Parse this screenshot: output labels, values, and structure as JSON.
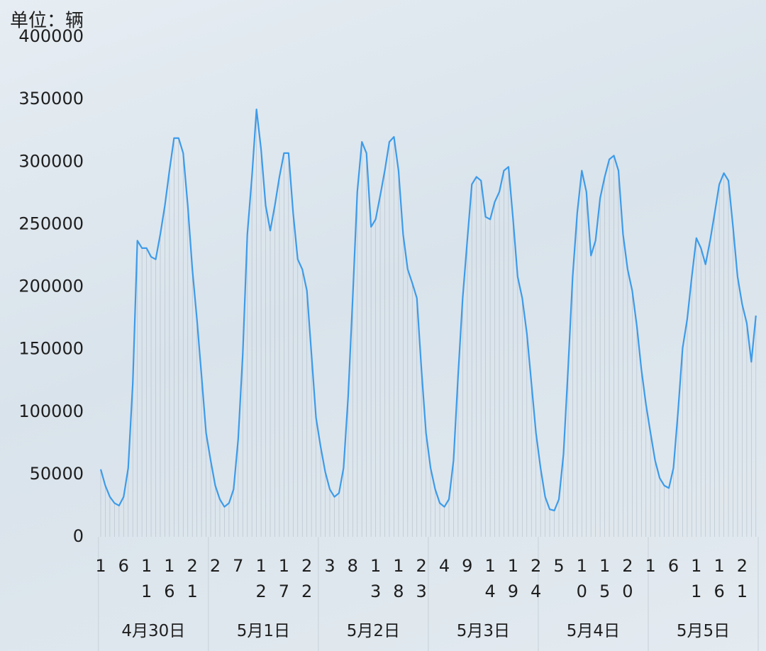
{
  "chart_data": {
    "type": "line",
    "title": "单位：辆",
    "categories": [
      1,
      null,
      null,
      null,
      null,
      6,
      null,
      null,
      null,
      null,
      11,
      null,
      null,
      null,
      null,
      16,
      null,
      null,
      null,
      null,
      21,
      null,
      null,
      null,
      null,
      2,
      null,
      null,
      null,
      null,
      7,
      null,
      null,
      null,
      null,
      12,
      null,
      null,
      null,
      null,
      17,
      null,
      null,
      null,
      null,
      22,
      null,
      null,
      null,
      null,
      3,
      null,
      null,
      null,
      null,
      8,
      null,
      null,
      null,
      null,
      13,
      null,
      null,
      null,
      null,
      18,
      null,
      null,
      null,
      null,
      23,
      null,
      null,
      null,
      null,
      4,
      null,
      null,
      null,
      null,
      9,
      null,
      null,
      null,
      null,
      14,
      null,
      null,
      null,
      null,
      19,
      null,
      null,
      null,
      null,
      24,
      null,
      null,
      null,
      null,
      5,
      null,
      null,
      null,
      null,
      10,
      null,
      null,
      null,
      null,
      15,
      null,
      null,
      null,
      null,
      20,
      null,
      null,
      null,
      null,
      1,
      null,
      null,
      null,
      null,
      6,
      null,
      null,
      null,
      null,
      11,
      null,
      null,
      null,
      null,
      16,
      null,
      null,
      null,
      null,
      21,
      null,
      null,
      null
    ],
    "groups": [
      "4月30日",
      "5月1日",
      "5月2日",
      "5月3日",
      "5月4日",
      "5月5日"
    ],
    "values": [
      54000,
      41000,
      32000,
      27000,
      25000,
      32000,
      55000,
      123000,
      237000,
      231000,
      231000,
      224000,
      222000,
      242000,
      265000,
      293000,
      319000,
      319000,
      307000,
      265000,
      214000,
      174000,
      129000,
      83000,
      61000,
      41000,
      30000,
      24000,
      27000,
      38000,
      78000,
      146000,
      242000,
      288000,
      342000,
      310000,
      265000,
      245000,
      265000,
      288000,
      307000,
      307000,
      259000,
      222000,
      214000,
      197000,
      146000,
      95000,
      72000,
      52000,
      38000,
      32000,
      35000,
      55000,
      112000,
      191000,
      276000,
      316000,
      307000,
      248000,
      254000,
      273000,
      293000,
      316000,
      320000,
      293000,
      242000,
      214000,
      203000,
      191000,
      134000,
      83000,
      55000,
      38000,
      27000,
      24000,
      30000,
      61000,
      129000,
      191000,
      237000,
      282000,
      288000,
      285000,
      256000,
      254000,
      268000,
      276000,
      293000,
      296000,
      254000,
      208000,
      191000,
      163000,
      123000,
      83000,
      55000,
      32000,
      22000,
      21000,
      30000,
      66000,
      134000,
      208000,
      259000,
      293000,
      276000,
      225000,
      237000,
      271000,
      288000,
      302000,
      305000,
      293000,
      242000,
      214000,
      197000,
      169000,
      134000,
      106000,
      83000,
      61000,
      47000,
      41000,
      39000,
      55000,
      100000,
      151000,
      174000,
      208000,
      239000,
      231000,
      218000,
      237000,
      259000,
      282000,
      291000,
      285000,
      248000,
      208000,
      186000,
      171000,
      140000,
      177000
    ],
    "color": "#3d9be9",
    "ylim": [
      0,
      400000
    ],
    "yticks": [
      0,
      50000,
      100000,
      150000,
      200000,
      250000,
      300000,
      350000,
      400000
    ],
    "drop_lines": true
  }
}
